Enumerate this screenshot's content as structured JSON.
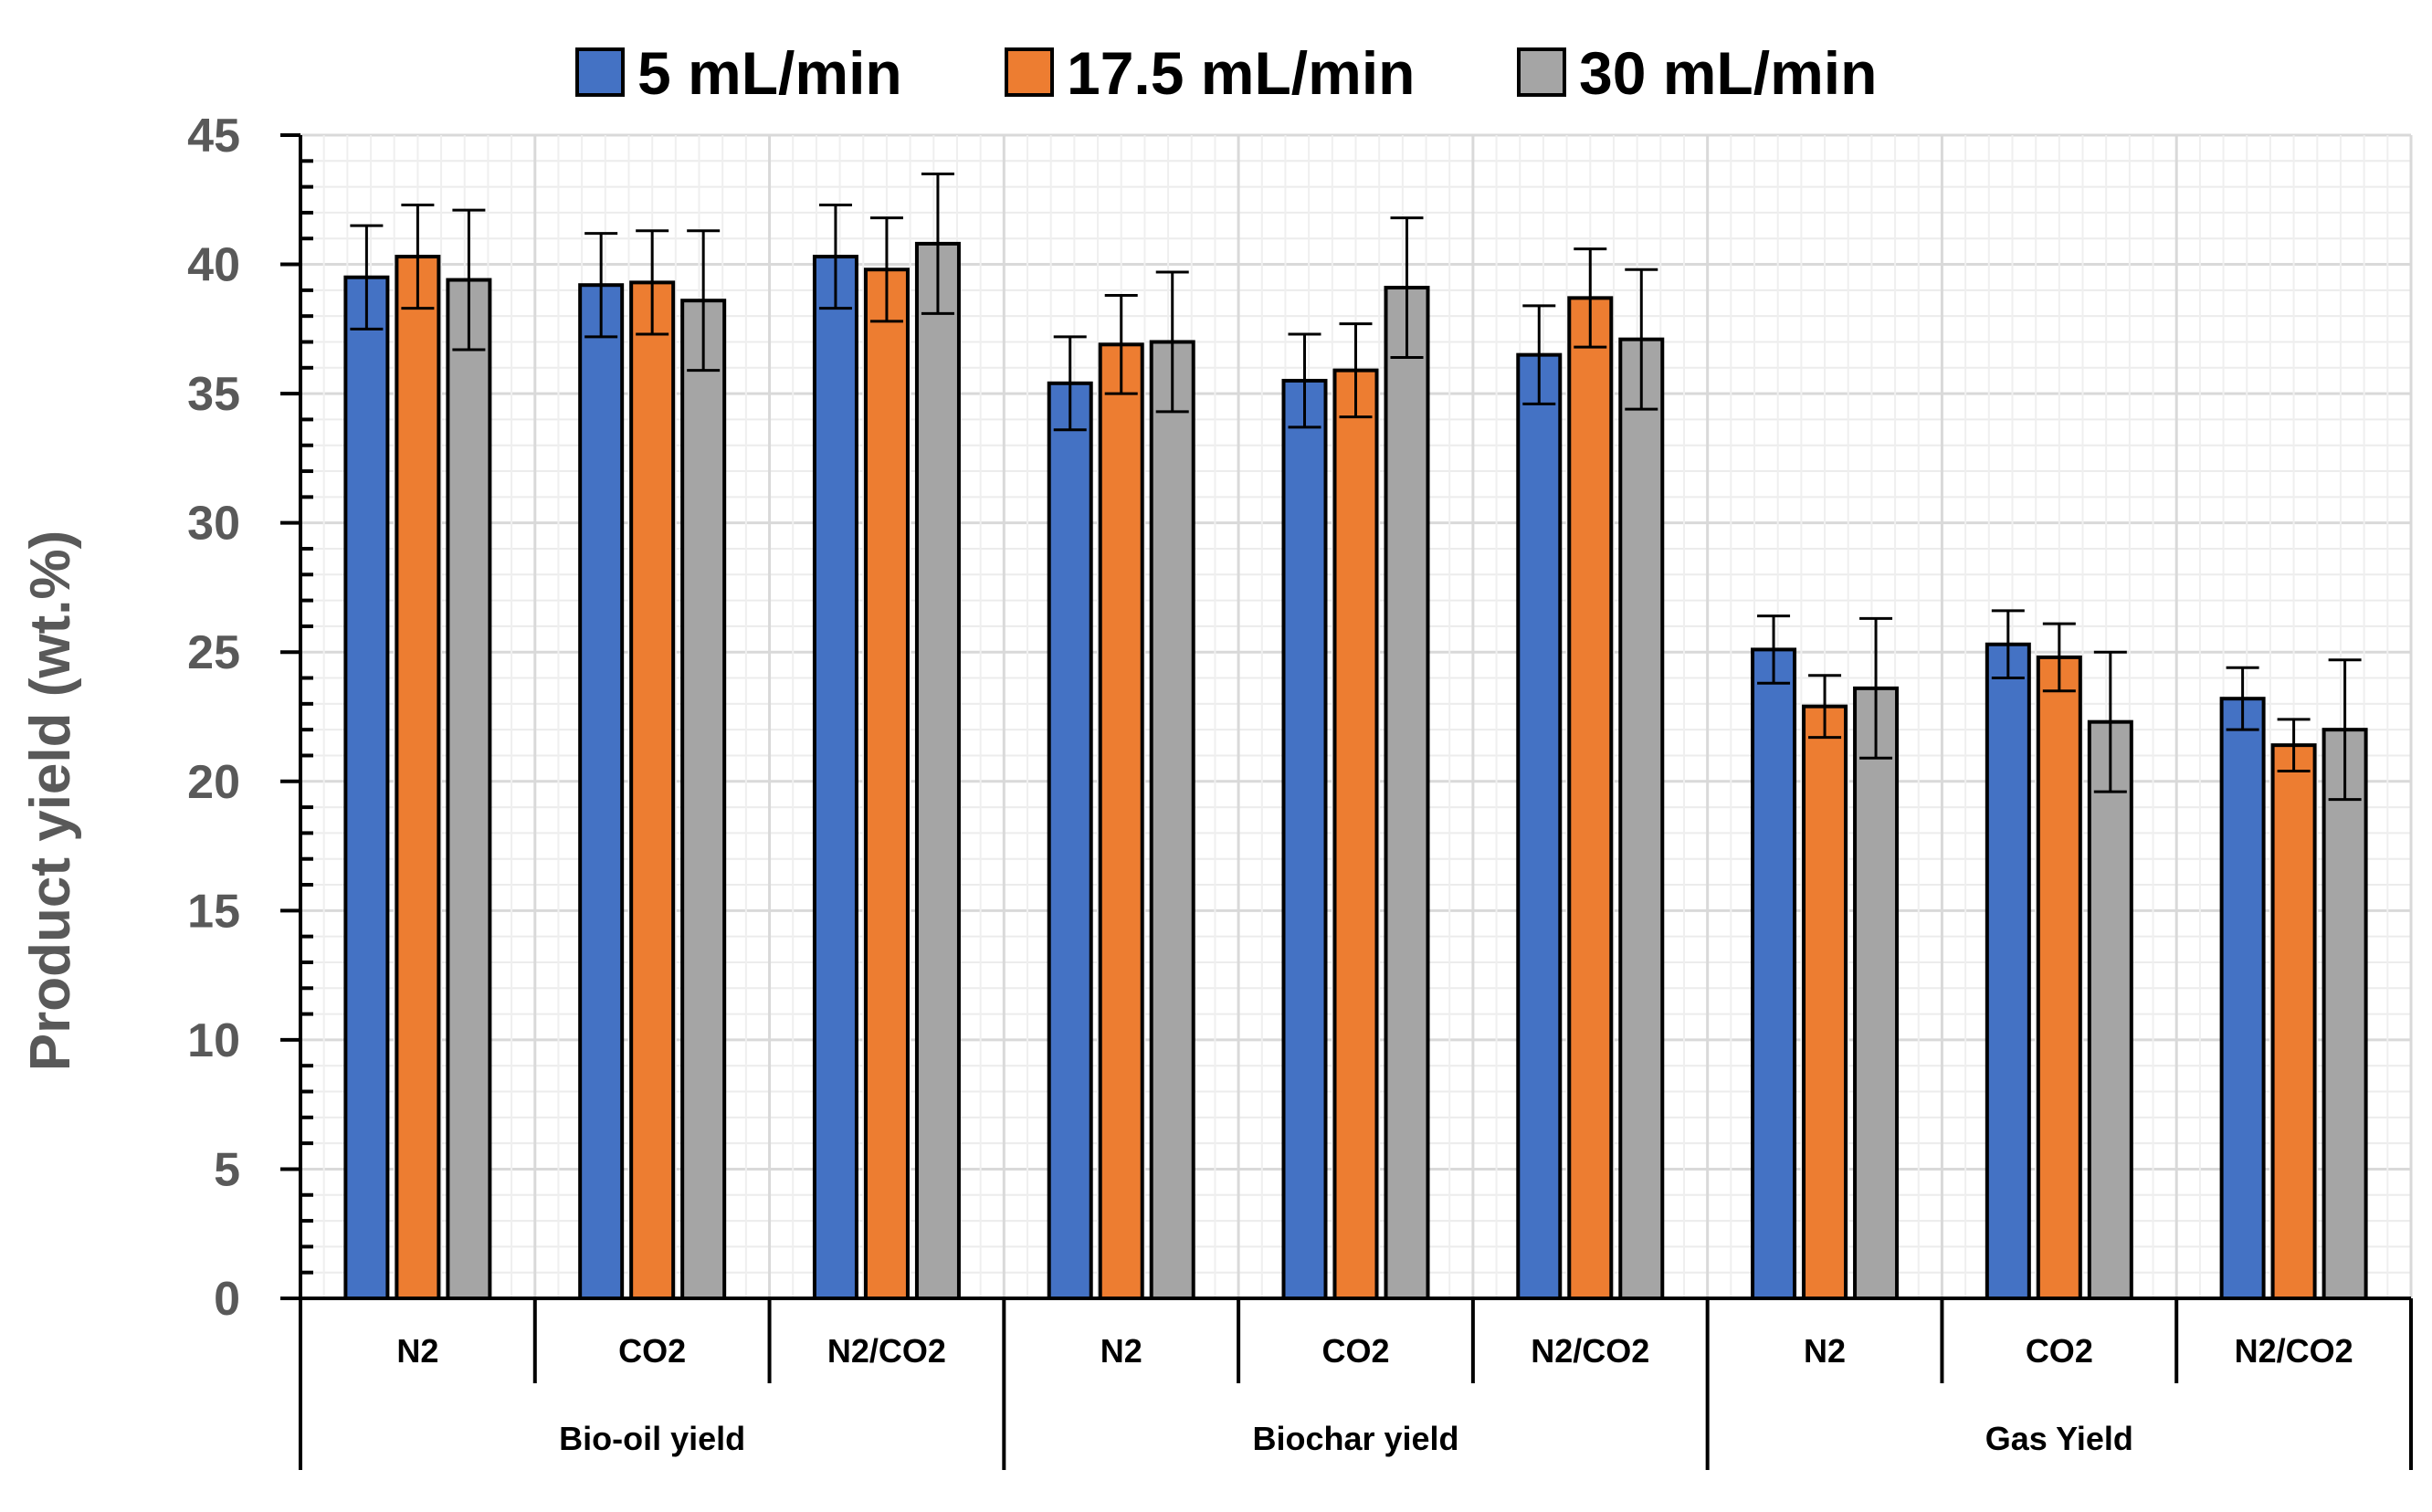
{
  "chart_data": {
    "type": "bar",
    "title": "",
    "ylabel": "Product yield (wt.%)",
    "xlabel": "",
    "ylim": [
      0,
      45
    ],
    "yticks": [
      0,
      5,
      10,
      15,
      20,
      25,
      30,
      35,
      40,
      45
    ],
    "grid": true,
    "legend_position": "top",
    "groups": [
      "Bio-oil yield",
      "Biochar yield",
      "Gas Yield"
    ],
    "categories": [
      "N2",
      "CO2",
      "N2/CO2",
      "N2",
      "CO2",
      "N2/CO2",
      "N2",
      "CO2",
      "N2/CO2"
    ],
    "series": [
      {
        "name": "5 mL/min",
        "color": "#4472C4",
        "values": [
          39.5,
          39.2,
          40.3,
          35.4,
          35.5,
          36.5,
          25.1,
          25.3,
          23.2
        ],
        "errors": [
          2.0,
          2.0,
          2.0,
          1.8,
          1.8,
          1.9,
          1.3,
          1.3,
          1.2
        ]
      },
      {
        "name": "17.5 mL/min",
        "color": "#ED7D31",
        "values": [
          40.3,
          39.3,
          39.8,
          36.9,
          35.9,
          38.7,
          22.9,
          24.8,
          21.4
        ],
        "errors": [
          2.0,
          2.0,
          2.0,
          1.9,
          1.8,
          1.9,
          1.2,
          1.3,
          1.0
        ]
      },
      {
        "name": "30 mL/min",
        "color": "#A5A5A5",
        "values": [
          39.4,
          38.6,
          40.8,
          37.0,
          39.1,
          37.1,
          23.6,
          22.3,
          22.0
        ],
        "errors": [
          2.7,
          2.7,
          2.7,
          2.7,
          2.7,
          2.7,
          2.7,
          2.7,
          2.7
        ]
      }
    ]
  }
}
